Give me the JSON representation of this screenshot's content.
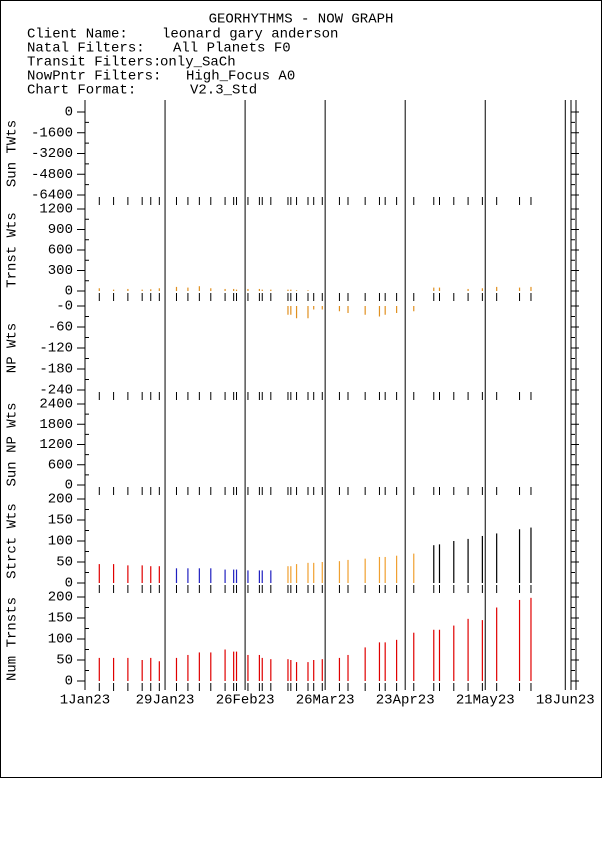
{
  "header": {
    "title": "GEORHYTHMS - NOW GRAPH",
    "fields": [
      {
        "label": "Client Name:",
        "value": "leonard gary anderson"
      },
      {
        "label": "Natal Filters:",
        "value": "All Planets F0"
      },
      {
        "label": "Transit Filters:",
        "value": "only_SaCh"
      },
      {
        "label": "NowPntr Filters:",
        "value": "High_Focus A0"
      },
      {
        "label": "Chart Format:",
        "value": "V2.3_Std"
      }
    ]
  },
  "chart_data": {
    "type": "bar",
    "x": [
      "2023-01-06",
      "2023-01-11",
      "2023-01-16",
      "2023-01-21",
      "2023-01-24",
      "2023-01-27",
      "2023-02-02",
      "2023-02-06",
      "2023-02-10",
      "2023-02-14",
      "2023-02-19",
      "2023-02-22",
      "2023-02-23",
      "2023-02-27",
      "2023-03-03",
      "2023-03-04",
      "2023-03-07",
      "2023-03-13",
      "2023-03-14",
      "2023-03-16",
      "2023-03-20",
      "2023-03-22",
      "2023-03-25",
      "2023-03-31",
      "2023-04-03",
      "2023-04-09",
      "2023-04-14",
      "2023-04-16",
      "2023-04-20",
      "2023-04-26",
      "2023-05-03",
      "2023-05-05",
      "2023-05-10",
      "2023-05-15",
      "2023-05-20",
      "2023-05-25",
      "2023-06-02",
      "2023-06-06"
    ],
    "xlim": [
      "2023-01-01",
      "2023-06-20"
    ],
    "xticks": [
      {
        "value": "2023-01-01",
        "label": "1Jan23"
      },
      {
        "value": "2023-01-29",
        "label": "29Jan23"
      },
      {
        "value": "2023-02-26",
        "label": "26Feb23"
      },
      {
        "value": "2023-03-26",
        "label": "26Mar23"
      },
      {
        "value": "2023-04-23",
        "label": "23Apr23"
      },
      {
        "value": "2023-05-21",
        "label": "21May23"
      },
      {
        "value": "2023-06-18",
        "label": "18Jun23"
      }
    ],
    "panels": [
      {
        "ylabel": "Sun TWts",
        "ylim": [
          -6400,
          0
        ],
        "yticks": [
          0,
          -1600,
          -3200,
          -4800,
          -6400
        ],
        "series": []
      },
      {
        "ylabel": "Trnst Wts",
        "ylim": [
          0,
          1200
        ],
        "yticks": [
          0,
          300,
          600,
          900,
          1200
        ],
        "series": [
          {
            "color": "#e09020",
            "values": [
              40,
              20,
              30,
              20,
              25,
              40,
              60,
              50,
              70,
              40,
              30,
              30,
              20,
              30,
              30,
              20,
              20,
              20,
              20,
              10,
              10,
              null,
              null,
              null,
              null,
              null,
              null,
              null,
              null,
              null,
              50,
              50,
              null,
              30,
              40,
              60,
              50,
              60
            ]
          }
        ]
      },
      {
        "ylabel": "NP Wts",
        "ylim": [
          -240,
          0
        ],
        "yticks": [
          {
            "value": 0,
            "label": "-0"
          },
          -60,
          -120,
          -180,
          -240
        ],
        "series": [
          {
            "color": "#e09020",
            "values": [
              null,
              null,
              null,
              null,
              null,
              null,
              null,
              null,
              null,
              null,
              null,
              null,
              null,
              null,
              null,
              null,
              null,
              -25,
              -25,
              -35,
              -35,
              -10,
              -10,
              -15,
              -20,
              -25,
              -30,
              -25,
              -20,
              -15,
              null,
              null,
              null,
              null,
              null,
              null,
              null,
              null
            ]
          }
        ]
      },
      {
        "ylabel": "Sun NP Wts",
        "ylim": [
          0,
          2400
        ],
        "yticks": [
          0,
          600,
          1200,
          1800,
          2400
        ],
        "series": []
      },
      {
        "ylabel": "Strct Wts",
        "ylim": [
          0,
          200
        ],
        "yticks": [
          0,
          50,
          100,
          150,
          200
        ],
        "series": [
          {
            "color": "#e00000",
            "values": [
              45,
              45,
              42,
              42,
              40,
              40,
              null,
              null,
              null,
              null,
              null,
              null,
              null,
              null,
              null,
              null,
              null,
              null,
              null,
              null,
              null,
              null,
              null,
              null,
              null,
              null,
              null,
              null,
              null,
              null,
              null,
              null,
              null,
              null,
              null,
              null,
              null,
              null
            ]
          },
          {
            "color": "#2020c0",
            "values": [
              null,
              null,
              null,
              null,
              null,
              null,
              35,
              35,
              35,
              35,
              32,
              32,
              32,
              30,
              30,
              30,
              30,
              null,
              null,
              null,
              null,
              null,
              null,
              null,
              null,
              null,
              null,
              null,
              null,
              null,
              null,
              null,
              null,
              null,
              null,
              null,
              null,
              null
            ]
          },
          {
            "color": "#f0a030",
            "values": [
              null,
              null,
              null,
              null,
              null,
              null,
              null,
              null,
              null,
              null,
              null,
              null,
              null,
              null,
              null,
              null,
              null,
              40,
              40,
              45,
              48,
              48,
              50,
              52,
              55,
              58,
              62,
              62,
              65,
              70,
              null,
              null,
              null,
              null,
              null,
              null,
              null,
              null
            ]
          },
          {
            "color": "#000000",
            "values": [
              null,
              null,
              null,
              null,
              null,
              null,
              null,
              null,
              null,
              null,
              null,
              null,
              null,
              null,
              null,
              null,
              null,
              null,
              null,
              null,
              null,
              null,
              null,
              null,
              null,
              null,
              null,
              null,
              null,
              null,
              90,
              92,
              100,
              105,
              112,
              118,
              128,
              132
            ]
          }
        ]
      },
      {
        "ylabel": "Num Trnsts",
        "ylim": [
          0,
          200
        ],
        "yticks": [
          0,
          50,
          100,
          150,
          200
        ],
        "series": [
          {
            "color": "#e00000",
            "values": [
              55,
              55,
              55,
              50,
              55,
              47,
              55,
              62,
              68,
              68,
              75,
              70,
              70,
              62,
              62,
              55,
              52,
              52,
              50,
              45,
              45,
              50,
              52,
              55,
              62,
              80,
              92,
              92,
              98,
              115,
              122,
              122,
              132,
              148,
              145,
              175,
              193,
              198
            ]
          }
        ]
      }
    ]
  }
}
